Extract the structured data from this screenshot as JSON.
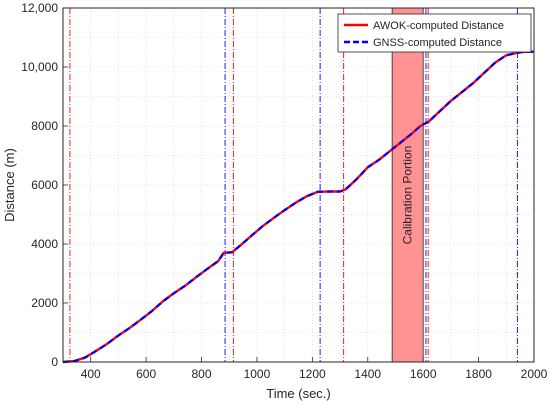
{
  "chart_data": {
    "type": "line",
    "title": "",
    "xlabel": "Time (sec.)",
    "ylabel": "Distance (m)",
    "xlim": [
      300,
      2000
    ],
    "ylim": [
      0,
      12000
    ],
    "xticks": [
      400,
      600,
      800,
      1000,
      1200,
      1400,
      1600,
      1800,
      2000
    ],
    "yticks": [
      0,
      2000,
      4000,
      6000,
      8000,
      10000,
      12000
    ],
    "ytick_labels": [
      "0",
      "2000",
      "4000",
      "6000",
      "8000",
      "10,000",
      "12,000"
    ],
    "grid": true,
    "legend_position": "top-right",
    "series": [
      {
        "name": "AWOK-computed Distance",
        "color": "#ff0000",
        "style": "solid",
        "x": [
          300,
          340,
          380,
          420,
          460,
          500,
          540,
          580,
          620,
          660,
          700,
          740,
          780,
          820,
          860,
          880,
          910,
          940,
          980,
          1020,
          1060,
          1100,
          1140,
          1180,
          1220,
          1260,
          1300,
          1320,
          1360,
          1400,
          1440,
          1480,
          1520,
          1560,
          1590,
          1620,
          1660,
          1700,
          1740,
          1780,
          1820,
          1860,
          1900,
          1940,
          1960,
          2000
        ],
        "y": [
          0,
          30,
          150,
          380,
          620,
          900,
          1150,
          1430,
          1720,
          2050,
          2330,
          2580,
          2870,
          3150,
          3420,
          3700,
          3720,
          3950,
          4280,
          4600,
          4880,
          5150,
          5400,
          5620,
          5770,
          5780,
          5780,
          5850,
          6200,
          6600,
          6850,
          7150,
          7450,
          7750,
          8000,
          8150,
          8500,
          8850,
          9150,
          9450,
          9800,
          10150,
          10400,
          10480,
          10510,
          10520
        ]
      },
      {
        "name": "GNSS-computed Distance",
        "color": "#0000ff",
        "style": "dashed",
        "x": [
          300,
          340,
          380,
          420,
          460,
          500,
          540,
          580,
          620,
          660,
          700,
          740,
          780,
          820,
          860,
          880,
          910,
          940,
          980,
          1020,
          1060,
          1100,
          1140,
          1180,
          1220,
          1260,
          1300,
          1320,
          1360,
          1400,
          1440,
          1480,
          1520,
          1560,
          1590,
          1620,
          1660,
          1700,
          1740,
          1780,
          1820,
          1860,
          1900,
          1940,
          1960,
          2000
        ],
        "y": [
          0,
          30,
          150,
          380,
          620,
          900,
          1150,
          1430,
          1720,
          2050,
          2330,
          2580,
          2870,
          3150,
          3420,
          3700,
          3720,
          3950,
          4280,
          4600,
          4880,
          5150,
          5400,
          5620,
          5770,
          5780,
          5780,
          5850,
          6200,
          6600,
          6850,
          7150,
          7450,
          7750,
          8000,
          8150,
          8500,
          8850,
          9150,
          9450,
          9800,
          10150,
          10400,
          10480,
          10510,
          10520
        ]
      }
    ],
    "vertical_markers": [
      {
        "x": 325,
        "color": "#ff0000"
      },
      {
        "x": 885,
        "color": "#0000ff"
      },
      {
        "x": 915,
        "color": "#ff0000"
      },
      {
        "x": 1228,
        "color": "#0000ff"
      },
      {
        "x": 1313,
        "color": "#ff0000"
      },
      {
        "x": 1610,
        "color": "#0000ff"
      },
      {
        "x": 1618,
        "color": "#ff0000"
      },
      {
        "x": 1940,
        "color": "#0000ff"
      }
    ],
    "shaded_region": {
      "x_start": 1488,
      "x_end": 1600,
      "color": "#ff8080",
      "label": "Calibration Portion"
    }
  }
}
